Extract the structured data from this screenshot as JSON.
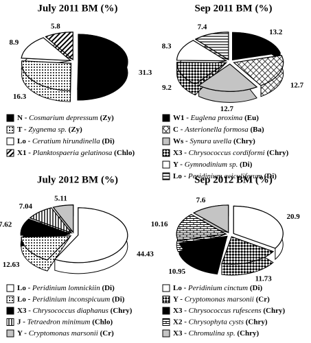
{
  "chart_data": [
    {
      "type": "pie",
      "title": "July 2011 BM (%)",
      "categories": [
        "N",
        "T",
        "Lo",
        "X1"
      ],
      "species": [
        "Cosmarium depressum",
        "Zygnema sp.",
        "Ceratium hirundinella",
        "Planktospaeria gelatinosa"
      ],
      "groups": [
        "(Zy)",
        "(Zy)",
        "(Di)",
        "(Chlo)"
      ],
      "values": [
        31.3,
        16.3,
        8.9,
        5.8
      ],
      "fills": [
        "black",
        "dots",
        "white",
        "hatch"
      ]
    },
    {
      "type": "pie",
      "title": "Sep 2011 BM (%)",
      "categories": [
        "W1",
        "C",
        "Ws",
        "X3",
        "Y",
        "Lo"
      ],
      "species": [
        "Euglena proxima",
        "Asterionella formosa",
        "Synura uvella",
        "Chrysococcus cordiformi",
        "Gymnodinium sp.",
        "Peridinium aciculiferum"
      ],
      "groups": [
        "(Eu)",
        "(Ba)",
        "(Chry)",
        "(Chry)",
        "(Di)",
        "(Di)"
      ],
      "values": [
        13.2,
        12.7,
        12.7,
        9.2,
        8.3,
        7.4
      ],
      "fills": [
        "black",
        "cross",
        "lightgray",
        "checker",
        "white",
        "hlines"
      ]
    },
    {
      "type": "pie",
      "title": "July 2012 BM (%)",
      "categories": [
        "Lo",
        "Lo",
        "X3",
        "J",
        "Y"
      ],
      "species": [
        "Peridinium lomnickiin",
        "Peridinium inconspicuum",
        "Chrysococcus diaphanus",
        "Tetraedron minimum",
        "Cryptomonas marsonii"
      ],
      "groups": [
        "(Di)",
        "(Di)",
        "(Chry)",
        "(Chlo)",
        "(Cr)"
      ],
      "values": [
        44.43,
        12.63,
        7.62,
        7.04,
        5.11
      ],
      "fills": [
        "white",
        "dots",
        "black",
        "vlines",
        "lightgray"
      ]
    },
    {
      "type": "pie",
      "title": "Sep 2012 BM (%)",
      "categories": [
        "Lo",
        "Y",
        "X3",
        "X2",
        "X3"
      ],
      "species": [
        "Peridinium cinctum",
        "Cryptomonas marsonii",
        "Chrysococcus rufescens",
        "Chrysophyta cysts",
        "Chromulina sp."
      ],
      "groups": [
        "(Di)",
        "(Cr)",
        "(Chry)",
        "(Chry)",
        "(Chry)"
      ],
      "values": [
        20.9,
        11.73,
        10.95,
        10.16,
        7.6
      ],
      "fills": [
        "white",
        "checker",
        "black",
        "brick",
        "lightgray"
      ]
    }
  ]
}
